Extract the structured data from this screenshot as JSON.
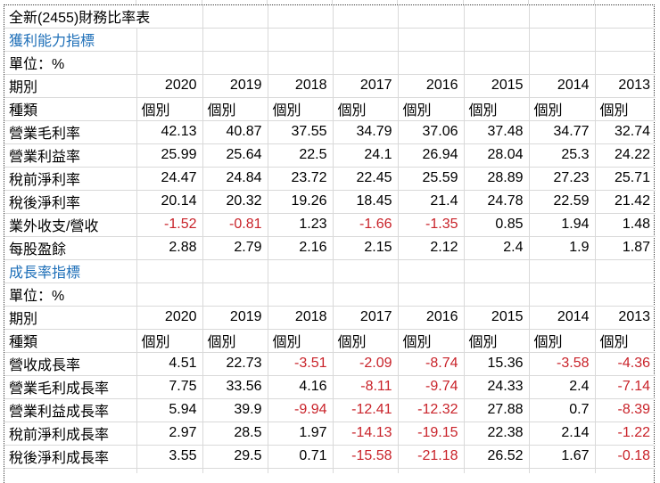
{
  "page": {
    "title": "全新(2455)財務比率表"
  },
  "columns": {
    "period_label": "期別",
    "type_label": "種類",
    "type_value": "個別",
    "years": [
      "2020",
      "2019",
      "2018",
      "2017",
      "2016",
      "2015",
      "2014",
      "2013"
    ]
  },
  "sections": [
    {
      "heading": "獲利能力指標",
      "unit": "單位：%",
      "rows": [
        {
          "label": "營業毛利率",
          "values": [
            "42.13",
            "40.87",
            "37.55",
            "34.79",
            "37.06",
            "37.48",
            "34.77",
            "32.74"
          ]
        },
        {
          "label": "營業利益率",
          "values": [
            "25.99",
            "25.64",
            "22.5",
            "24.1",
            "26.94",
            "28.04",
            "25.3",
            "24.22"
          ]
        },
        {
          "label": "稅前淨利率",
          "values": [
            "24.47",
            "24.84",
            "23.72",
            "22.45",
            "25.59",
            "28.89",
            "27.23",
            "25.71"
          ]
        },
        {
          "label": "稅後淨利率",
          "values": [
            "20.14",
            "20.32",
            "19.26",
            "18.45",
            "21.4",
            "24.78",
            "22.59",
            "21.42"
          ]
        },
        {
          "label": "業外收支/營收",
          "values": [
            "-1.52",
            "-0.81",
            "1.23",
            "-1.66",
            "-1.35",
            "0.85",
            "1.94",
            "1.48"
          ]
        },
        {
          "label": "每股盈餘",
          "values": [
            "2.88",
            "2.79",
            "2.16",
            "2.15",
            "2.12",
            "2.4",
            "1.9",
            "1.87"
          ]
        }
      ]
    },
    {
      "heading": "成長率指標",
      "unit": "單位：%",
      "rows": [
        {
          "label": "營收成長率",
          "values": [
            "4.51",
            "22.73",
            "-3.51",
            "-2.09",
            "-8.74",
            "15.36",
            "-3.58",
            "-4.36"
          ]
        },
        {
          "label": "營業毛利成長率",
          "values": [
            "7.75",
            "33.56",
            "4.16",
            "-8.11",
            "-9.74",
            "24.33",
            "2.4",
            "-7.14"
          ]
        },
        {
          "label": "營業利益成長率",
          "values": [
            "5.94",
            "39.9",
            "-9.94",
            "-12.41",
            "-12.32",
            "27.88",
            "0.7",
            "-8.39"
          ]
        },
        {
          "label": "稅前淨利成長率",
          "values": [
            "2.97",
            "28.5",
            "1.97",
            "-14.13",
            "-19.15",
            "22.38",
            "2.14",
            "-1.22"
          ]
        },
        {
          "label": "稅後淨利成長率",
          "values": [
            "3.55",
            "29.5",
            "0.71",
            "-15.58",
            "-21.18",
            "26.52",
            "1.67",
            "-0.18"
          ]
        }
      ]
    }
  ],
  "colors": {
    "accent_blue": "#1e6fb8",
    "negative_red": "#c9232a",
    "gridline": "#d9d9d9",
    "text": "#000000"
  }
}
